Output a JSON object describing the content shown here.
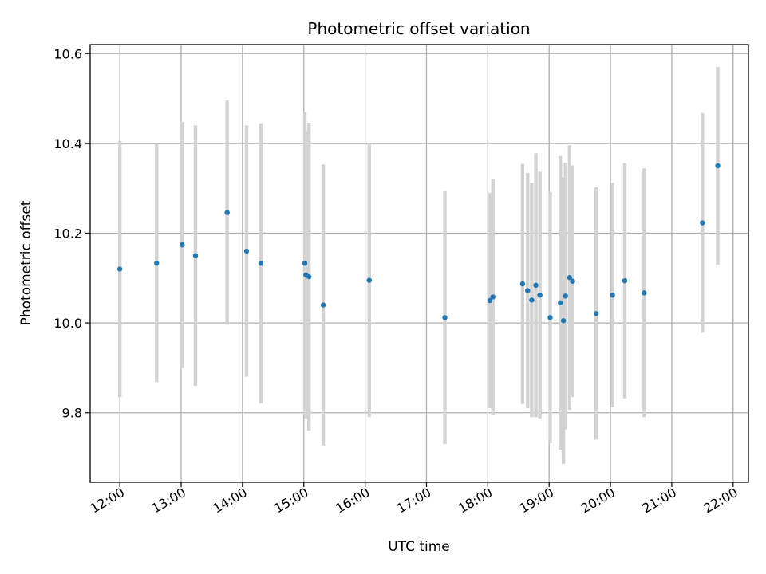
{
  "chart_data": {
    "type": "scatter",
    "title": "Photometric offset variation",
    "xlabel": "UTC time",
    "ylabel": "Photometric offset",
    "xlim": [
      "11:31",
      "22:15"
    ],
    "ylim": [
      9.645,
      10.62
    ],
    "x_ticks": [
      "12:00",
      "13:00",
      "14:00",
      "15:00",
      "16:00",
      "17:00",
      "18:00",
      "19:00",
      "20:00",
      "21:00",
      "22:00"
    ],
    "y_ticks": [
      9.8,
      10.0,
      10.2,
      10.4,
      10.6
    ],
    "y_tick_labels": [
      "9.8",
      "10.0",
      "10.2",
      "10.4",
      "10.6"
    ],
    "grid": true,
    "marker_color": "#1f77b4",
    "errorbar_color": "#d3d3d3",
    "points": [
      {
        "t": "12:00",
        "y": 10.12,
        "ylo": 9.835,
        "yhi": 10.405
      },
      {
        "t": "12:36",
        "y": 10.133,
        "ylo": 9.868,
        "yhi": 10.398
      },
      {
        "t": "13:01",
        "y": 10.174,
        "ylo": 9.9,
        "yhi": 10.448
      },
      {
        "t": "13:14",
        "y": 10.15,
        "ylo": 9.86,
        "yhi": 10.44
      },
      {
        "t": "13:45",
        "y": 10.246,
        "ylo": 9.996,
        "yhi": 10.496
      },
      {
        "t": "14:04",
        "y": 10.16,
        "ylo": 9.88,
        "yhi": 10.44
      },
      {
        "t": "14:18",
        "y": 10.133,
        "ylo": 9.821,
        "yhi": 10.445
      },
      {
        "t": "15:01",
        "y": 10.133,
        "ylo": 9.797,
        "yhi": 10.469
      },
      {
        "t": "15:02",
        "y": 10.107,
        "ylo": 9.787,
        "yhi": 10.427
      },
      {
        "t": "15:05",
        "y": 10.103,
        "ylo": 9.76,
        "yhi": 10.446
      },
      {
        "t": "15:19",
        "y": 10.04,
        "ylo": 9.727,
        "yhi": 10.353
      },
      {
        "t": "16:04",
        "y": 10.095,
        "ylo": 9.79,
        "yhi": 10.4
      },
      {
        "t": "17:18",
        "y": 10.012,
        "ylo": 9.73,
        "yhi": 10.294
      },
      {
        "t": "18:02",
        "y": 10.05,
        "ylo": 9.81,
        "yhi": 10.29
      },
      {
        "t": "18:05",
        "y": 10.058,
        "ylo": 9.796,
        "yhi": 10.32
      },
      {
        "t": "18:34",
        "y": 10.087,
        "ylo": 9.82,
        "yhi": 10.354
      },
      {
        "t": "18:39",
        "y": 10.072,
        "ylo": 9.81,
        "yhi": 10.334
      },
      {
        "t": "18:43",
        "y": 10.051,
        "ylo": 9.79,
        "yhi": 10.312
      },
      {
        "t": "18:47",
        "y": 10.084,
        "ylo": 9.79,
        "yhi": 10.378
      },
      {
        "t": "18:51",
        "y": 10.062,
        "ylo": 9.787,
        "yhi": 10.337
      },
      {
        "t": "19:01",
        "y": 10.012,
        "ylo": 9.732,
        "yhi": 10.292
      },
      {
        "t": "19:11",
        "y": 10.045,
        "ylo": 9.718,
        "yhi": 10.372
      },
      {
        "t": "19:14",
        "y": 10.005,
        "ylo": 9.686,
        "yhi": 10.324
      },
      {
        "t": "19:16",
        "y": 10.06,
        "ylo": 9.763,
        "yhi": 10.357
      },
      {
        "t": "19:20",
        "y": 10.101,
        "ylo": 9.806,
        "yhi": 10.396
      },
      {
        "t": "19:23",
        "y": 10.093,
        "ylo": 9.835,
        "yhi": 10.351
      },
      {
        "t": "19:46",
        "y": 10.021,
        "ylo": 9.74,
        "yhi": 10.302
      },
      {
        "t": "20:02",
        "y": 10.062,
        "ylo": 9.812,
        "yhi": 10.312
      },
      {
        "t": "20:14",
        "y": 10.094,
        "ylo": 9.832,
        "yhi": 10.356
      },
      {
        "t": "20:33",
        "y": 10.067,
        "ylo": 9.79,
        "yhi": 10.344
      },
      {
        "t": "21:30",
        "y": 10.223,
        "ylo": 9.978,
        "yhi": 10.468
      },
      {
        "t": "21:45",
        "y": 10.35,
        "ylo": 10.13,
        "yhi": 10.57
      }
    ]
  }
}
